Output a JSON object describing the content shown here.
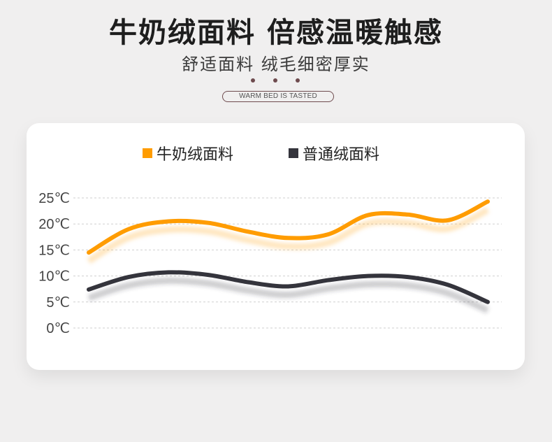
{
  "header": {
    "title": "牛奶绒面料 倍感温暖触感",
    "subtitle": "舒适面料 绒毛细密厚实",
    "tagline": "WARM BED IS TASTED"
  },
  "colors": {
    "accent": "#ff9c00",
    "dark": "#34343c",
    "grid": "#cfcfcf"
  },
  "chart_data": {
    "type": "line",
    "title": "",
    "xlabel": "",
    "ylabel": "",
    "ylim": [
      0,
      25
    ],
    "yticks": [
      {
        "value": 25,
        "label": "25℃"
      },
      {
        "value": 20,
        "label": "20℃"
      },
      {
        "value": 15,
        "label": "15℃"
      },
      {
        "value": 10,
        "label": "10℃"
      },
      {
        "value": 5,
        "label": "5℃"
      },
      {
        "value": 0,
        "label": "0℃"
      }
    ],
    "legend_position": "top-center",
    "x": [
      0,
      0.1,
      0.2,
      0.3,
      0.4,
      0.5,
      0.6,
      0.7,
      0.8,
      0.9,
      1.0
    ],
    "series": [
      {
        "name": "牛奶绒面料",
        "color": "#ff9c00",
        "values": [
          14.5,
          19.0,
          20.5,
          20.2,
          18.5,
          17.3,
          18.0,
          21.7,
          21.8,
          20.7,
          24.3
        ]
      },
      {
        "name": "普通绒面料",
        "color": "#34343c",
        "values": [
          7.4,
          9.8,
          10.7,
          10.2,
          8.8,
          8.0,
          9.2,
          10.0,
          9.8,
          8.3,
          5.0
        ]
      }
    ]
  }
}
